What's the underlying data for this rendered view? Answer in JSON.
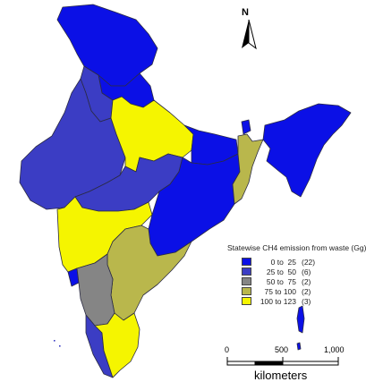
{
  "legend": {
    "title": "Statewise CH4 emission from waste (Gg)",
    "classes": [
      {
        "range": "0 to  25",
        "count": "(22)",
        "color": "#0b10e6"
      },
      {
        "range": "25 to  50",
        "count": "(6)",
        "color": "#3b3dc4"
      },
      {
        "range": "50 to  75",
        "count": "(2)",
        "color": "#858585"
      },
      {
        "range": "75 to 100",
        "count": "(2)",
        "color": "#b9b74c"
      },
      {
        "range": "100 to 123",
        "count": "(3)",
        "color": "#f5f500"
      }
    ]
  },
  "north_arrow": {
    "label": "N"
  },
  "scale_bar": {
    "ticks": [
      "0",
      "500",
      "1,000"
    ],
    "unit": "kilometers"
  }
}
